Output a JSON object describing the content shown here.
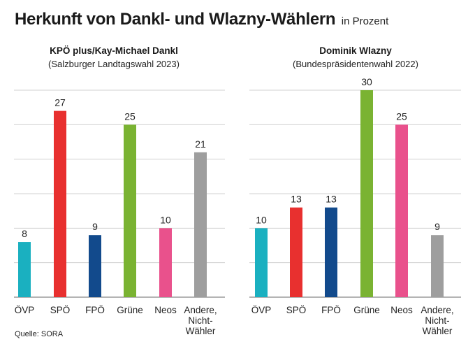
{
  "header": {
    "title": "Herkunft von Dankl- und Wlazny-Wählern",
    "unit": "in Prozent"
  },
  "source": "Quelle: SORA",
  "colors": {
    "ÖVP": "#1ab0c0",
    "SPÖ": "#e8302f",
    "FPÖ": "#124a8c",
    "Grüne": "#7ab332",
    "Neos": "#e9518c",
    "Andere": "#9e9e9e",
    "grid": "#d0d0d0",
    "axis": "#888888"
  },
  "chart_data": [
    {
      "type": "bar",
      "title": "KPÖ plus/Kay-Michael Dankl",
      "subtitle": "(Salzburger Landtagswahl 2023)",
      "categories": [
        "ÖVP",
        "SPÖ",
        "FPÖ",
        "Grüne",
        "Neos",
        "Andere, Nicht-Wähler"
      ],
      "category_lines": [
        [
          "ÖVP"
        ],
        [
          "SPÖ"
        ],
        [
          "FPÖ"
        ],
        [
          "Grüne"
        ],
        [
          "Neos"
        ],
        [
          "Andere,",
          "Nicht-",
          "Wähler"
        ]
      ],
      "values": [
        8,
        27,
        9,
        25,
        10,
        21
      ],
      "ylim": [
        0,
        30
      ],
      "gridlines": [
        5,
        10,
        15,
        20,
        25,
        30
      ],
      "xlabel": "",
      "ylabel": ""
    },
    {
      "type": "bar",
      "title": "Dominik Wlazny",
      "subtitle": "(Bundespräsidentenwahl 2022)",
      "categories": [
        "ÖVP",
        "SPÖ",
        "FPÖ",
        "Grüne",
        "Neos",
        "Andere, Nicht-Wähler"
      ],
      "category_lines": [
        [
          "ÖVP"
        ],
        [
          "SPÖ"
        ],
        [
          "FPÖ"
        ],
        [
          "Grüne"
        ],
        [
          "Neos"
        ],
        [
          "Andere,",
          "Nicht-",
          "Wähler"
        ]
      ],
      "values": [
        10,
        13,
        13,
        30,
        25,
        9
      ],
      "ylim": [
        0,
        30
      ],
      "gridlines": [
        5,
        10,
        15,
        20,
        25,
        30
      ],
      "xlabel": "",
      "ylabel": ""
    }
  ]
}
